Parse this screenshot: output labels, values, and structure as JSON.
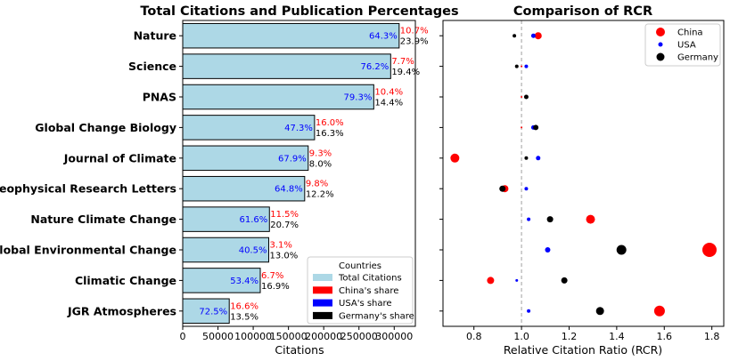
{
  "chart_data": [
    {
      "type": "bar",
      "orientation": "horizontal",
      "title": "Total Citations and Publication Percentages",
      "xlabel": "Citations",
      "ylabel": "",
      "xlim": [
        0,
        330000
      ],
      "xticks": [
        "0",
        "50000",
        "100000",
        "150000",
        "200000",
        "250000",
        "300000"
      ],
      "categories": [
        "Nature",
        "Science",
        "PNAS",
        "Global Change Biology",
        "Journal of Climate",
        "Geophysical Research Letters",
        "Nature Climate Change",
        "Global Environmental Change",
        "Climatic Change",
        "JGR Atmospheres"
      ],
      "values": [
        307000,
        295000,
        271000,
        187000,
        178000,
        173000,
        123000,
        122000,
        110000,
        66000
      ],
      "usa_share": [
        "64.3%",
        "76.2%",
        "79.3%",
        "47.3%",
        "67.9%",
        "64.8%",
        "61.6%",
        "40.5%",
        "53.4%",
        "72.5%"
      ],
      "china_share": [
        "10.7%",
        "7.7%",
        "10.4%",
        "16.0%",
        "9.3%",
        "9.8%",
        "11.5%",
        "3.1%",
        "6.7%",
        "16.6%"
      ],
      "germany_share": [
        "23.9%",
        "19.4%",
        "14.4%",
        "16.3%",
        "8.0%",
        "12.2%",
        "20.7%",
        "13.0%",
        "16.9%",
        "13.5%"
      ],
      "legend": {
        "title": "Countries",
        "position": "lower-right",
        "entries": [
          {
            "label": "Total Citations",
            "color": "#add8e6"
          },
          {
            "label": "China's share",
            "color": "#ff0000"
          },
          {
            "label": "USA's share",
            "color": "#0000ff"
          },
          {
            "label": "Germany's share",
            "color": "#000000"
          }
        ]
      },
      "colors": {
        "bar": "#add8e6",
        "china": "#ff0000",
        "usa": "#0000ff",
        "germany": "#000000"
      }
    },
    {
      "type": "scatter",
      "title": "Comparison of RCR",
      "xlabel": "Relative Citation Ratio (RCR)",
      "ylabel": "",
      "xlim": [
        0.67,
        1.85
      ],
      "xticks": [
        "0.8",
        "1.0",
        "1.2",
        "1.4",
        "1.6",
        "1.8"
      ],
      "reference_line": 1.0,
      "series": [
        {
          "name": "China",
          "color": "#ff0000",
          "x": [
            1.07,
            1.0,
            1.0,
            1.0,
            0.72,
            0.93,
            1.29,
            1.79,
            0.87,
            1.58
          ],
          "size": [
            4,
            1,
            1,
            1,
            5,
            4,
            5,
            8,
            4,
            6
          ]
        },
        {
          "name": "USA",
          "color": "#0000ff",
          "x": [
            1.05,
            1.02,
            1.02,
            1.05,
            1.07,
            1.02,
            1.03,
            1.11,
            0.98,
            1.03
          ],
          "size": [
            2.5,
            2,
            2,
            2.5,
            2.5,
            2,
            2,
            3,
            1.5,
            2
          ]
        },
        {
          "name": "Germany",
          "color": "#000000",
          "x": [
            0.97,
            0.98,
            1.02,
            1.06,
            1.02,
            0.92,
            1.12,
            1.42,
            1.18,
            1.33
          ],
          "size": [
            2,
            2,
            2.5,
            3,
            2,
            3.5,
            3.5,
            5.5,
            3.5,
            4.5
          ]
        }
      ],
      "legend": {
        "position": "top-right",
        "entries": [
          "China",
          "USA",
          "Germany"
        ]
      }
    }
  ]
}
